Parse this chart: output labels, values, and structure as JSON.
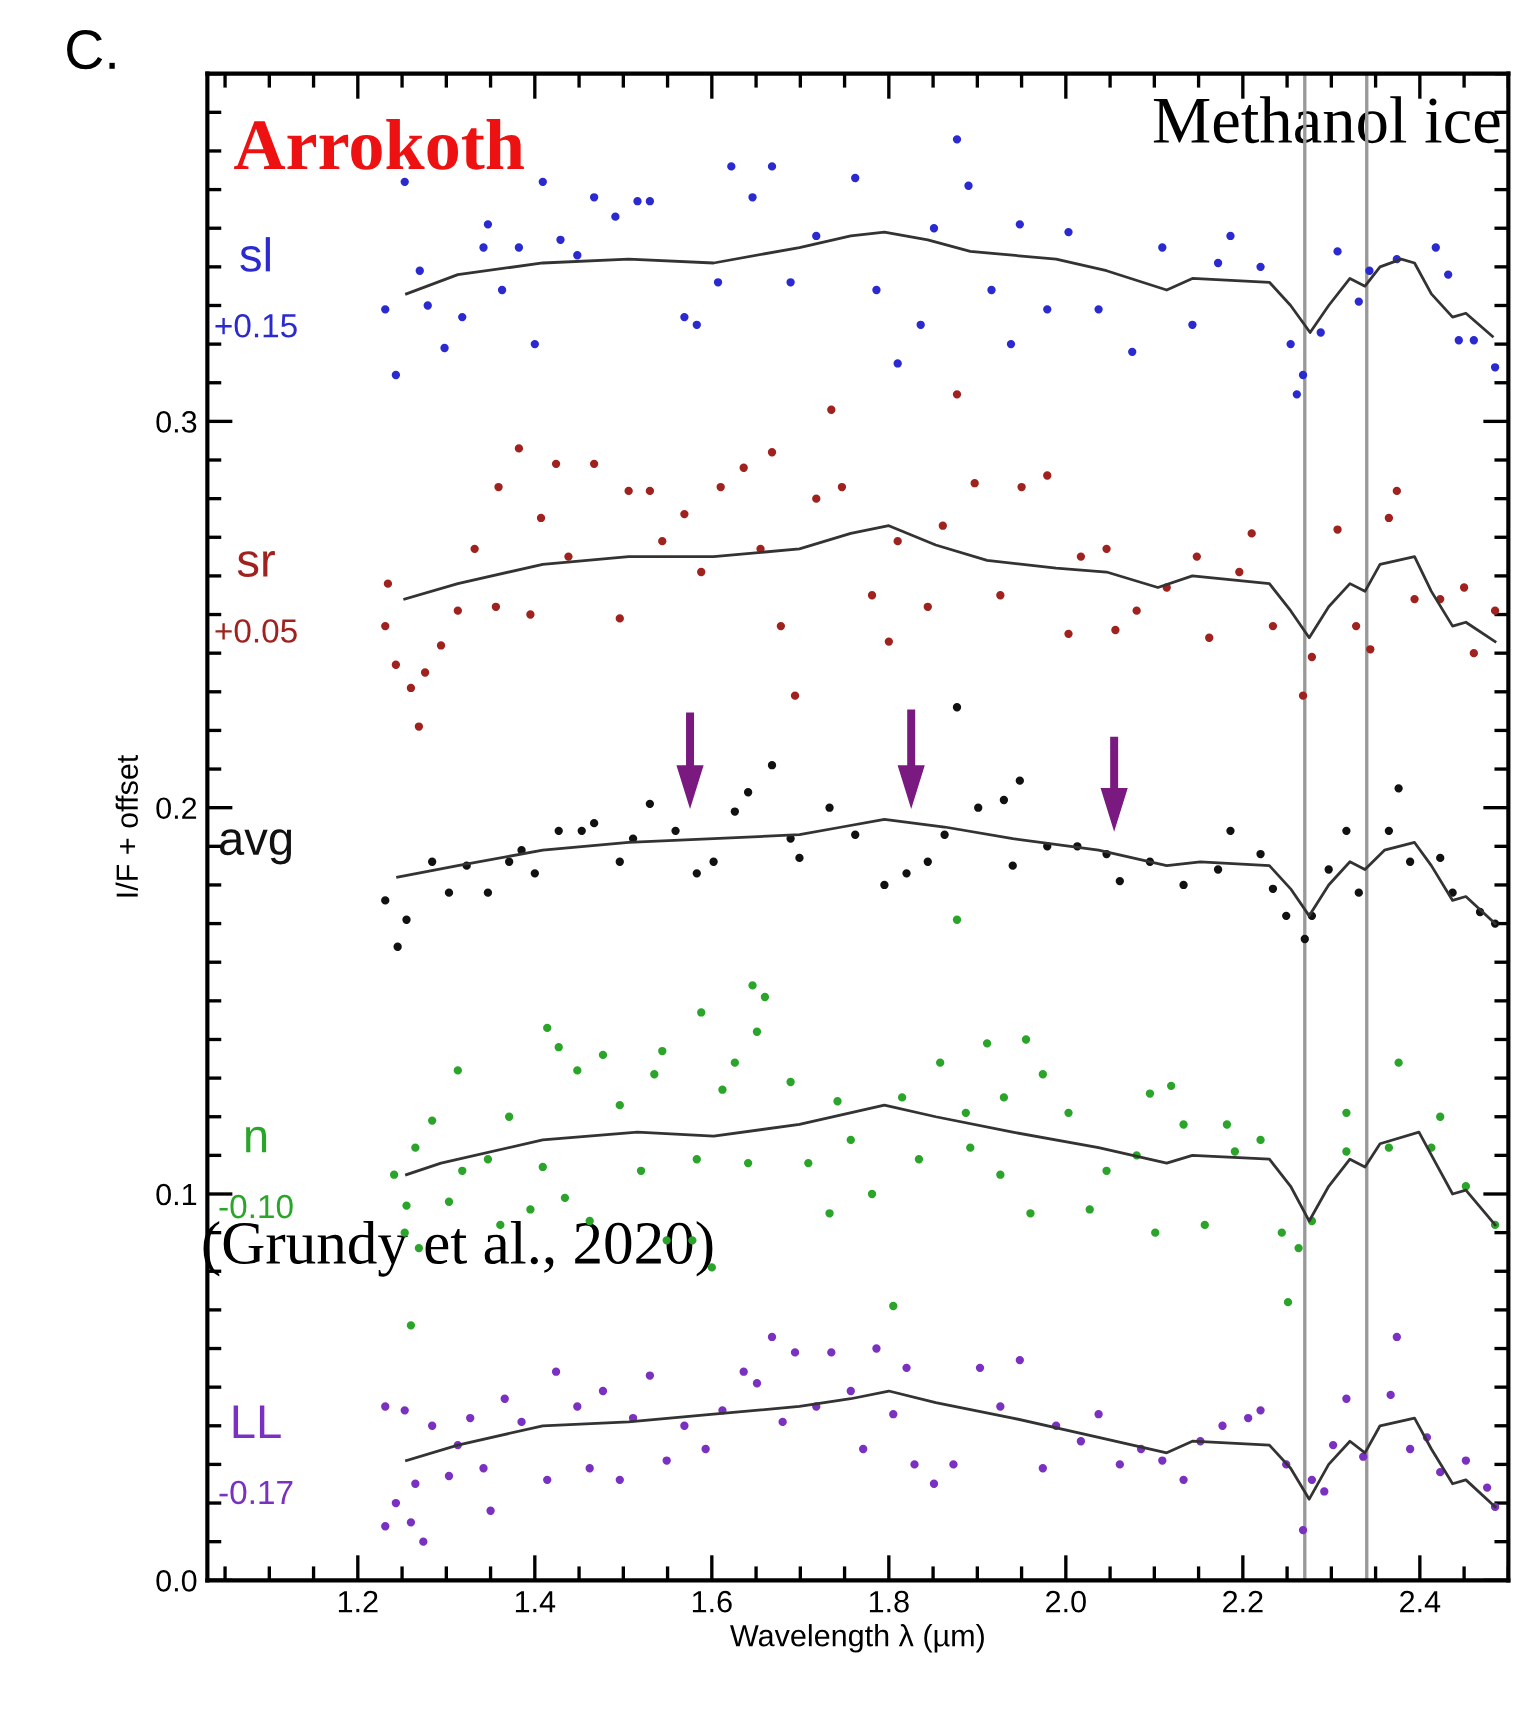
{
  "chart_data": {
    "type": "scatter",
    "title": "Arrokoth",
    "xlabel": "Wavelength λ (µm)",
    "ylabel": "I/F + offset",
    "annotations": [
      "C.",
      "Methanol ice",
      "(Grundy et al., 2020)"
    ],
    "xlim": [
      1.03,
      2.5
    ],
    "ylim": [
      0,
      0.39
    ],
    "xticks": [
      1.2,
      1.4,
      1.6,
      1.8,
      {
        "value": 2.0,
        "label": "2.0"
      },
      2.2,
      2.4
    ],
    "yticks": [
      {
        "value": 0,
        "label": "0.0"
      },
      0.1,
      0.2,
      0.3
    ],
    "ref_lines": [
      {
        "axis": "x",
        "value": 2.27,
        "color": "#999999"
      },
      {
        "axis": "x",
        "value": 2.34,
        "color": "#999999"
      }
    ],
    "grid": false,
    "legend": false,
    "series": [
      {
        "name": "sl\n+0.15",
        "marker": "circle",
        "color": "#2a2ad0",
        "x": [
          1.231,
          1.243,
          1.253,
          1.27,
          1.279,
          1.298,
          1.318,
          1.342,
          1.347,
          1.363,
          1.382,
          1.4,
          1.409,
          1.429,
          1.448,
          1.467,
          1.491,
          1.516,
          1.53,
          1.569,
          1.583,
          1.607,
          1.622,
          1.646,
          1.668,
          1.689,
          1.718,
          1.762,
          1.786,
          1.81,
          1.836,
          1.851,
          1.877,
          1.89,
          1.916,
          1.938,
          1.948,
          1.979,
          2.003,
          2.037,
          2.075,
          2.109,
          2.143,
          2.172,
          2.186,
          2.22,
          2.254,
          2.261,
          2.268,
          2.288,
          2.307,
          2.331,
          2.343,
          2.374,
          2.418,
          2.432,
          2.444,
          2.461,
          2.485
        ],
        "values": [
          0.329,
          0.312,
          0.362,
          0.339,
          0.33,
          0.319,
          0.327,
          0.345,
          0.351,
          0.334,
          0.345,
          0.32,
          0.362,
          0.347,
          0.343,
          0.358,
          0.353,
          0.357,
          0.357,
          0.327,
          0.325,
          0.336,
          0.366,
          0.358,
          0.366,
          0.336,
          0.348,
          0.363,
          0.334,
          0.315,
          0.325,
          0.35,
          0.373,
          0.361,
          0.334,
          0.32,
          0.351,
          0.329,
          0.349,
          0.329,
          0.318,
          0.345,
          0.325,
          0.341,
          0.348,
          0.34,
          0.32,
          0.307,
          0.312,
          0.323,
          0.344,
          0.331,
          0.339,
          0.342,
          0.345,
          0.338,
          0.321,
          0.321,
          0.314
        ]
      },
      {
        "type": "line",
        "color": "#333333",
        "x": [
          1.255,
          1.313,
          1.409,
          1.506,
          1.602,
          1.699,
          1.757,
          1.795,
          1.844,
          1.892,
          1.989,
          2.046,
          2.114,
          2.143,
          2.23,
          2.254,
          2.276,
          2.297,
          2.321,
          2.338,
          2.355,
          2.379,
          2.394,
          2.413,
          2.437,
          2.452,
          2.482
        ],
        "values": [
          0.333,
          0.338,
          0.341,
          0.342,
          0.341,
          0.345,
          0.348,
          0.349,
          0.347,
          0.344,
          0.342,
          0.339,
          0.334,
          0.337,
          0.336,
          0.33,
          0.323,
          0.33,
          0.337,
          0.335,
          0.34,
          0.342,
          0.341,
          0.333,
          0.327,
          0.328,
          0.322
        ]
      },
      {
        "name": "sr\n+0.05",
        "marker": "circle",
        "color": "#a0221e",
        "x": [
          1.231,
          1.234,
          1.243,
          1.26,
          1.269,
          1.276,
          1.294,
          1.313,
          1.332,
          1.356,
          1.359,
          1.382,
          1.395,
          1.407,
          1.424,
          1.438,
          1.467,
          1.496,
          1.506,
          1.53,
          1.544,
          1.569,
          1.588,
          1.61,
          1.636,
          1.655,
          1.668,
          1.678,
          1.694,
          1.718,
          1.735,
          1.747,
          1.781,
          1.8,
          1.81,
          1.844,
          1.861,
          1.877,
          1.897,
          1.926,
          1.95,
          1.979,
          2.003,
          2.017,
          2.046,
          2.056,
          2.08,
          2.114,
          2.148,
          2.162,
          2.196,
          2.21,
          2.234,
          2.268,
          2.278,
          2.307,
          2.328,
          2.344,
          2.365,
          2.374,
          2.394,
          2.423,
          2.45,
          2.461,
          2.485
        ],
        "values": [
          0.247,
          0.258,
          0.237,
          0.231,
          0.221,
          0.235,
          0.242,
          0.251,
          0.267,
          0.252,
          0.283,
          0.293,
          0.25,
          0.275,
          0.289,
          0.265,
          0.289,
          0.249,
          0.282,
          0.282,
          0.269,
          0.276,
          0.261,
          0.283,
          0.288,
          0.267,
          0.292,
          0.247,
          0.229,
          0.28,
          0.303,
          0.283,
          0.255,
          0.243,
          0.269,
          0.252,
          0.273,
          0.307,
          0.284,
          0.255,
          0.283,
          0.286,
          0.245,
          0.265,
          0.267,
          0.246,
          0.251,
          0.257,
          0.265,
          0.244,
          0.261,
          0.271,
          0.247,
          0.229,
          0.239,
          0.272,
          0.247,
          0.241,
          0.275,
          0.282,
          0.254,
          0.254,
          0.257,
          0.24,
          0.251
        ]
      },
      {
        "type": "line",
        "color": "#333333",
        "x": [
          1.253,
          1.313,
          1.409,
          1.506,
          1.602,
          1.699,
          1.757,
          1.8,
          1.853,
          1.911,
          1.989,
          2.046,
          2.104,
          2.143,
          2.23,
          2.254,
          2.275,
          2.297,
          2.321,
          2.338,
          2.355,
          2.394,
          2.413,
          2.437,
          2.452,
          2.485
        ],
        "values": [
          0.254,
          0.258,
          0.263,
          0.265,
          0.265,
          0.267,
          0.271,
          0.273,
          0.268,
          0.264,
          0.262,
          0.261,
          0.257,
          0.26,
          0.258,
          0.251,
          0.244,
          0.252,
          0.258,
          0.256,
          0.263,
          0.265,
          0.256,
          0.247,
          0.248,
          0.243
        ]
      },
      {
        "name": "avg",
        "marker": "circle",
        "color": "#111111",
        "x": [
          1.231,
          1.245,
          1.255,
          1.284,
          1.303,
          1.323,
          1.347,
          1.371,
          1.385,
          1.4,
          1.427,
          1.453,
          1.467,
          1.496,
          1.511,
          1.53,
          1.559,
          1.583,
          1.602,
          1.626,
          1.641,
          1.668,
          1.689,
          1.699,
          1.733,
          1.762,
          1.795,
          1.82,
          1.844,
          1.863,
          1.877,
          1.901,
          1.93,
          1.94,
          1.948,
          1.979,
          2.013,
          2.046,
          2.061,
          2.095,
          2.133,
          2.172,
          2.186,
          2.22,
          2.234,
          2.249,
          2.27,
          2.278,
          2.297,
          2.317,
          2.331,
          2.365,
          2.376,
          2.389,
          2.423,
          2.437,
          2.468,
          2.485
        ],
        "values": [
          0.176,
          0.164,
          0.171,
          0.186,
          0.178,
          0.185,
          0.178,
          0.186,
          0.189,
          0.183,
          0.194,
          0.194,
          0.196,
          0.186,
          0.192,
          0.201,
          0.194,
          0.183,
          0.186,
          0.199,
          0.204,
          0.211,
          0.192,
          0.187,
          0.2,
          0.193,
          0.18,
          0.183,
          0.186,
          0.193,
          0.226,
          0.2,
          0.202,
          0.185,
          0.207,
          0.19,
          0.19,
          0.188,
          0.181,
          0.186,
          0.18,
          0.184,
          0.194,
          0.188,
          0.179,
          0.172,
          0.166,
          0.172,
          0.184,
          0.194,
          0.178,
          0.194,
          0.205,
          0.186,
          0.187,
          0.178,
          0.173,
          0.17
        ]
      },
      {
        "type": "line",
        "color": "#333333",
        "x": [
          1.245,
          1.313,
          1.409,
          1.506,
          1.602,
          1.699,
          1.747,
          1.795,
          1.863,
          1.94,
          2.037,
          2.114,
          2.152,
          2.23,
          2.254,
          2.275,
          2.297,
          2.321,
          2.338,
          2.36,
          2.394,
          2.413,
          2.437,
          2.452,
          2.485
        ],
        "values": [
          0.182,
          0.185,
          0.189,
          0.191,
          0.192,
          0.193,
          0.195,
          0.197,
          0.195,
          0.192,
          0.189,
          0.185,
          0.186,
          0.185,
          0.179,
          0.172,
          0.18,
          0.186,
          0.184,
          0.189,
          0.191,
          0.185,
          0.176,
          0.177,
          0.17
        ]
      },
      {
        "name": "n\n-0.10",
        "marker": "circle",
        "color": "#2aa52a",
        "x": [
          1.241,
          1.253,
          1.255,
          1.26,
          1.265,
          1.269,
          1.284,
          1.303,
          1.313,
          1.318,
          1.347,
          1.361,
          1.371,
          1.395,
          1.409,
          1.414,
          1.427,
          1.434,
          1.448,
          1.462,
          1.477,
          1.496,
          1.52,
          1.535,
          1.544,
          1.549,
          1.578,
          1.583,
          1.588,
          1.6,
          1.612,
          1.626,
          1.641,
          1.646,
          1.651,
          1.66,
          1.689,
          1.709,
          1.733,
          1.742,
          1.757,
          1.781,
          1.805,
          1.815,
          1.834,
          1.858,
          1.877,
          1.887,
          1.892,
          1.911,
          1.926,
          1.93,
          1.955,
          1.96,
          1.974,
          2.003,
          2.027,
          2.046,
          2.08,
          2.095,
          2.101,
          2.119,
          2.133,
          2.157,
          2.182,
          2.191,
          2.22,
          2.244,
          2.251,
          2.263,
          2.278,
          2.317,
          2.317,
          2.365,
          2.376,
          2.413,
          2.423,
          2.452,
          2.485
        ],
        "values": [
          0.105,
          0.09,
          0.097,
          0.066,
          0.112,
          0.086,
          0.119,
          0.098,
          0.132,
          0.106,
          0.109,
          0.092,
          0.12,
          0.096,
          0.107,
          0.143,
          0.138,
          0.099,
          0.132,
          0.093,
          0.136,
          0.123,
          0.106,
          0.131,
          0.137,
          0.088,
          0.088,
          0.109,
          0.147,
          0.081,
          0.127,
          0.134,
          0.108,
          0.154,
          0.142,
          0.151,
          0.129,
          0.108,
          0.095,
          0.124,
          0.114,
          0.1,
          0.071,
          0.125,
          0.109,
          0.134,
          0.171,
          0.121,
          0.112,
          0.139,
          0.105,
          0.125,
          0.14,
          0.095,
          0.131,
          0.121,
          0.096,
          0.106,
          0.11,
          0.126,
          0.09,
          0.128,
          0.118,
          0.092,
          0.118,
          0.111,
          0.114,
          0.09,
          0.072,
          0.086,
          0.093,
          0.111,
          0.121,
          0.112,
          0.134,
          0.112,
          0.12,
          0.102,
          0.092
        ]
      },
      {
        "type": "line",
        "color": "#333333",
        "x": [
          1.255,
          1.294,
          1.409,
          1.516,
          1.602,
          1.699,
          1.795,
          1.853,
          1.94,
          2.037,
          2.114,
          2.143,
          2.23,
          2.254,
          2.275,
          2.297,
          2.321,
          2.338,
          2.355,
          2.399,
          2.418,
          2.437,
          2.452,
          2.485
        ],
        "values": [
          0.105,
          0.108,
          0.114,
          0.116,
          0.115,
          0.118,
          0.123,
          0.12,
          0.116,
          0.112,
          0.108,
          0.11,
          0.109,
          0.102,
          0.093,
          0.102,
          0.109,
          0.107,
          0.113,
          0.116,
          0.108,
          0.1,
          0.101,
          0.092
        ]
      },
      {
        "name": "LL\n-0.17",
        "marker": "circle",
        "color": "#7a30c0",
        "x": [
          1.231,
          1.231,
          1.243,
          1.253,
          1.26,
          1.274,
          1.265,
          1.284,
          1.303,
          1.313,
          1.327,
          1.342,
          1.35,
          1.366,
          1.385,
          1.414,
          1.424,
          1.448,
          1.462,
          1.477,
          1.496,
          1.511,
          1.53,
          1.549,
          1.569,
          1.593,
          1.612,
          1.636,
          1.651,
          1.668,
          1.68,
          1.694,
          1.718,
          1.735,
          1.757,
          1.771,
          1.786,
          1.805,
          1.82,
          1.829,
          1.851,
          1.873,
          1.903,
          1.926,
          1.948,
          1.974,
          1.989,
          2.017,
          2.037,
          2.061,
          2.085,
          2.109,
          2.133,
          2.152,
          2.177,
          2.206,
          2.22,
          2.249,
          2.268,
          2.278,
          2.292,
          2.302,
          2.317,
          2.336,
          2.367,
          2.374,
          2.389,
          2.408,
          2.423,
          2.452,
          2.476,
          2.485
        ],
        "values": [
          0.014,
          0.045,
          0.02,
          0.044,
          0.015,
          0.01,
          0.025,
          0.04,
          0.027,
          0.035,
          0.042,
          0.029,
          0.018,
          0.047,
          0.041,
          0.026,
          0.054,
          0.045,
          0.029,
          0.049,
          0.026,
          0.042,
          0.053,
          0.031,
          0.04,
          0.034,
          0.044,
          0.054,
          0.051,
          0.063,
          0.041,
          0.059,
          0.045,
          0.059,
          0.049,
          0.034,
          0.06,
          0.043,
          0.055,
          0.03,
          0.025,
          0.03,
          0.055,
          0.045,
          0.057,
          0.029,
          0.04,
          0.036,
          0.043,
          0.03,
          0.034,
          0.031,
          0.026,
          0.036,
          0.04,
          0.042,
          0.044,
          0.03,
          0.013,
          0.026,
          0.023,
          0.035,
          0.047,
          0.032,
          0.048,
          0.063,
          0.034,
          0.037,
          0.028,
          0.031,
          0.024,
          0.019
        ]
      },
      {
        "type": "line",
        "color": "#333333",
        "x": [
          1.255,
          1.313,
          1.409,
          1.506,
          1.602,
          1.699,
          1.757,
          1.8,
          1.853,
          1.94,
          2.037,
          2.114,
          2.143,
          2.23,
          2.254,
          2.275,
          2.297,
          2.321,
          2.338,
          2.355,
          2.394,
          2.413,
          2.437,
          2.452,
          2.485
        ],
        "values": [
          0.031,
          0.035,
          0.04,
          0.041,
          0.043,
          0.045,
          0.047,
          0.049,
          0.046,
          0.042,
          0.037,
          0.033,
          0.036,
          0.035,
          0.029,
          0.021,
          0.03,
          0.036,
          0.033,
          0.04,
          0.042,
          0.034,
          0.025,
          0.026,
          0.019
        ]
      }
    ]
  }
}
